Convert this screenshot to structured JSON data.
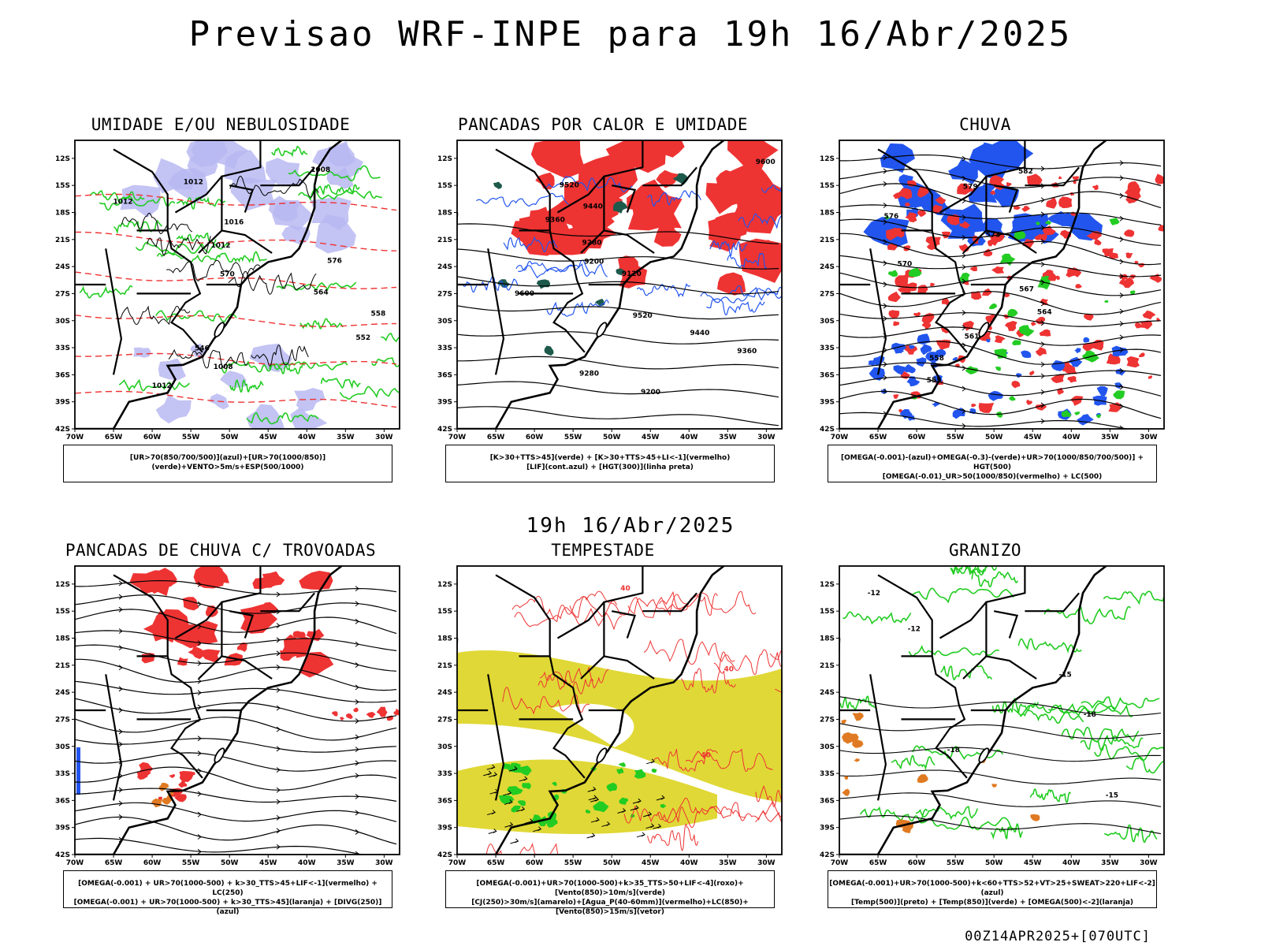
{
  "header": {
    "title": "Previsao WRF-INPE  para 19h 16/Abr/2025"
  },
  "mid_time": "19h 16/Abr/2025",
  "footer": "00Z14APR2025+[070UTC]",
  "colors": {
    "green_contour": "#22cc22",
    "red": "#ee3333",
    "blue": "#2255ee",
    "lavender": "#b9b9f2",
    "yellow": "#e0d836",
    "orange": "#e07a22",
    "dark_teal": "#1e5a4c",
    "black": "#000000"
  },
  "panels": [
    {
      "title": "UMIDADE E/OU NEBULOSIDADE",
      "legend_lines": [
        "[UR>70(850/700/500)](azul)+[UR>70(1000/850)](verde)+VENTO>5m/s+ESP(500/1000)"
      ],
      "contour_labels": [
        "1008",
        "1012",
        "1012",
        "1016",
        "1012",
        "576",
        "570",
        "564",
        "558",
        "552",
        "546",
        "1008",
        "1012"
      ]
    },
    {
      "title": "PANCADAS POR CALOR E UMIDADE",
      "legend_lines": [
        "[K>30+TTS>45](verde) + [K>30+TTS>45+LI<-1](vermelho)",
        "[LIF](cont.azul) + [HGT(300)](linha preta)"
      ],
      "contour_labels": [
        "9600",
        "9520",
        "9440",
        "9360",
        "9280",
        "9200",
        "9120",
        "9600",
        "9520",
        "9440",
        "9360",
        "9280",
        "9200"
      ]
    },
    {
      "title": "CHUVA",
      "legend_lines": [
        "[OMEGA(-0.001)-(azul)+OMEGA(-0.3)-(verde)+UR>70(1000/850/700/500)] + HGT(500)",
        "[OMEGA(-0.01)_UR>50(1000/850)(vermelho) + LC(500)"
      ],
      "contour_labels": [
        "582",
        "579",
        "576",
        "573",
        "570",
        "567",
        "564",
        "561",
        "558",
        "555"
      ]
    },
    {
      "title": "PANCADAS DE CHUVA C/ TROVOADAS",
      "legend_lines": [
        "[OMEGA(-0.001) + UR>70(1000-500) + k>30_TTS>45+LIF<-1](vermelho) + LC(250)",
        "[OMEGA(-0.001) + UR>70(1000-500) + k>30_TTS>45](laranja) + [DIVG(250)](azul)"
      ],
      "contour_labels": []
    },
    {
      "title": "TEMPESTADE",
      "legend_lines": [
        "[OMEGA(-0.001)+UR>70(1000-500)+k>35_TTS>50+LIF<-4](roxo)+[Vento(850)>10m/s](verde)",
        "[CJ(250)>30m/s](amarelo)+[Agua_P(40-60mm)](vermelho)+LC(850)+[Vento(850)>15m/s](vetor)"
      ],
      "contour_labels": [
        "40",
        "40",
        "40"
      ]
    },
    {
      "title": "GRANIZO",
      "legend_lines": [
        "[OMEGA(-0.001)+UR>70(1000-500)+k<60+TTS>52+VT>25+SWEAT>220+LIF<-2](azul)",
        "[Temp(500)](preto) + [Temp(850)](verde) + [OMEGA(500)<-2](laranja)"
      ],
      "contour_labels": [
        "-12",
        "-12",
        "-15",
        "-18",
        "-18",
        "-15"
      ]
    }
  ],
  "chart_data": {
    "type": "map",
    "x_ticks": [
      "70W",
      "65W",
      "60W",
      "55W",
      "50W",
      "45W",
      "40W",
      "35W",
      "30W"
    ],
    "y_ticks": [
      "12S",
      "15S",
      "18S",
      "21S",
      "24S",
      "27S",
      "30S",
      "33S",
      "36S",
      "39S",
      "42S"
    ],
    "lon_range": [
      -70,
      -28
    ],
    "lat_range": [
      -42,
      -10
    ]
  }
}
